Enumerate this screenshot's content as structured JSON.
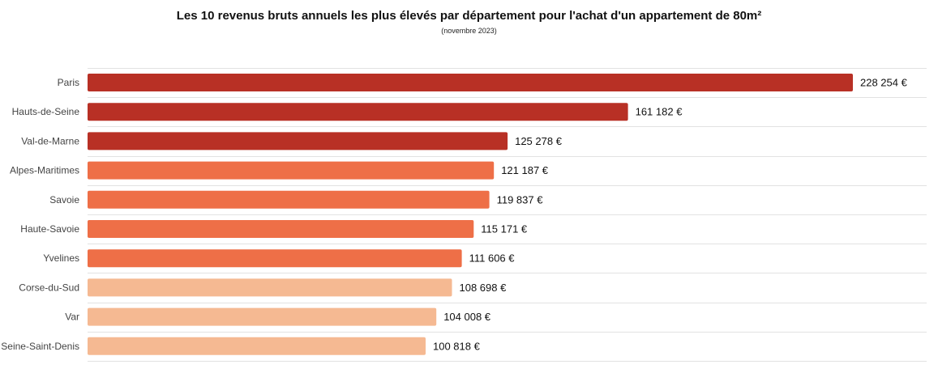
{
  "chart_data": {
    "type": "bar",
    "orientation": "horizontal",
    "title": "Les 10 revenus bruts annuels les plus élevés par département pour l'achat d'un appartement de 80m²",
    "subtitle": "(novembre 2023)",
    "categories": [
      "Paris",
      "Hauts-de-Seine",
      "Val-de-Marne",
      "Alpes-Maritimes",
      "Savoie",
      "Haute-Savoie",
      "Yvelines",
      "Corse-du-Sud",
      "Var",
      "Seine-Saint-Denis"
    ],
    "values": [
      228254,
      161182,
      125278,
      121187,
      119837,
      115171,
      111606,
      108698,
      104008,
      100818
    ],
    "value_labels": [
      "228 254 €",
      "161 182 €",
      "125 278 €",
      "121 187 €",
      "119 837 €",
      "115 171 €",
      "111 606 €",
      "108 698 €",
      "104 008 €",
      "100 818 €"
    ],
    "colors": [
      "#b83025",
      "#b83025",
      "#b83025",
      "#ee6f47",
      "#ee6f47",
      "#ee6f47",
      "#ee6f47",
      "#f5b992",
      "#f5b992",
      "#f5b992"
    ],
    "xlim": [
      0,
      228254
    ],
    "grid": "horizontal row separators",
    "legend": "none"
  }
}
